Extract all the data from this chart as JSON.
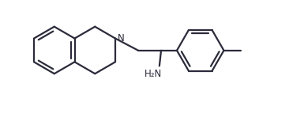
{
  "background_color": "#ffffff",
  "line_color": "#2b2b3b",
  "line_width": 1.6,
  "figsize": [
    3.66,
    1.53
  ],
  "dpi": 100,
  "h2n_label": "H₂N",
  "h2n_fontsize": 8.5,
  "n_fontsize": 8.5,
  "xlim": [
    0,
    10
  ],
  "ylim": [
    0,
    4.18
  ]
}
